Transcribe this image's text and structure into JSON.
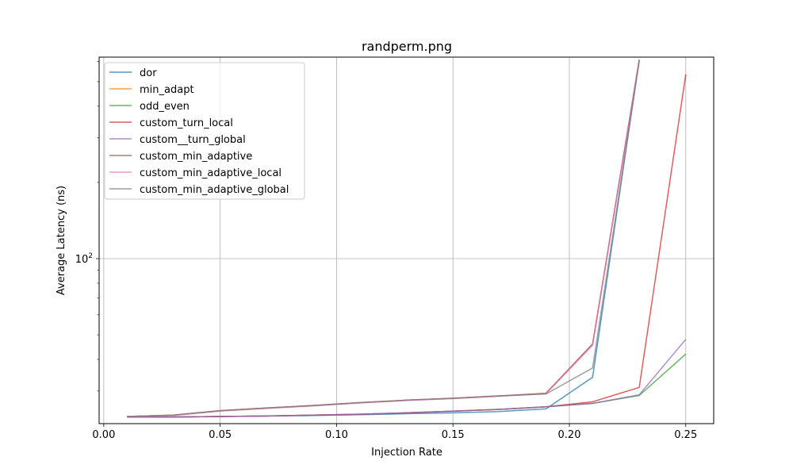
{
  "chart_data": {
    "type": "line",
    "title": "randperm.png",
    "xlabel": "Injection Rate",
    "ylabel": "Average Latency (ns)",
    "y_scale": "log",
    "xlim": [
      -0.002,
      0.262
    ],
    "ylim": [
      22.3,
      625
    ],
    "x_ticks": [
      0.0,
      0.05,
      0.1,
      0.15,
      0.2,
      0.25
    ],
    "x_tick_labels": [
      "0.00",
      "0.05",
      "0.10",
      "0.15",
      "0.20",
      "0.25"
    ],
    "y_major_tick": 100,
    "y_major_tick_label": "10",
    "y_major_tick_exponent": "2",
    "grid": true,
    "legend_position": "upper-left",
    "series": [
      {
        "name": "dor",
        "color": "#1f77b4",
        "x": [
          0.01,
          0.03,
          0.05,
          0.07,
          0.09,
          0.11,
          0.13,
          0.15,
          0.17,
          0.19,
          0.21,
          0.23
        ],
        "y": [
          23.7,
          23.7,
          23.8,
          23.9,
          24.0,
          24.2,
          24.4,
          24.6,
          24.9,
          25.5,
          34.0,
          610
        ]
      },
      {
        "name": "min_adapt",
        "color": "#ff7f0e",
        "x": [
          0.01,
          0.03,
          0.05,
          0.07,
          0.09,
          0.11,
          0.13,
          0.15,
          0.17,
          0.19,
          0.21,
          0.23
        ],
        "y": [
          23.8,
          24.1,
          25.1,
          25.7,
          26.3,
          27.0,
          27.6,
          28.1,
          28.7,
          29.4,
          46.0,
          610
        ]
      },
      {
        "name": "odd_even",
        "color": "#2ca02c",
        "x": [
          0.01,
          0.03,
          0.05,
          0.07,
          0.09,
          0.11,
          0.13,
          0.15,
          0.17,
          0.19,
          0.21,
          0.23,
          0.25
        ],
        "y": [
          23.7,
          23.7,
          23.8,
          23.9,
          24.1,
          24.3,
          24.6,
          25.0,
          25.4,
          26.0,
          26.8,
          28.8,
          42.0
        ]
      },
      {
        "name": "custom_turn_local",
        "color": "#d62728",
        "x": [
          0.01,
          0.03,
          0.05,
          0.07,
          0.09,
          0.11,
          0.13,
          0.15,
          0.17,
          0.19,
          0.21,
          0.23,
          0.25
        ],
        "y": [
          23.7,
          23.7,
          23.8,
          23.9,
          24.1,
          24.3,
          24.6,
          25.0,
          25.4,
          26.0,
          27.2,
          31.0,
          535
        ]
      },
      {
        "name": "custom__turn_global",
        "color": "#9467bd",
        "x": [
          0.01,
          0.03,
          0.05,
          0.07,
          0.09,
          0.11,
          0.13,
          0.15,
          0.17,
          0.19,
          0.21,
          0.23,
          0.25
        ],
        "y": [
          23.7,
          23.7,
          23.8,
          23.9,
          24.1,
          24.3,
          24.6,
          25.0,
          25.4,
          26.0,
          26.8,
          29.0,
          48.0
        ]
      },
      {
        "name": "custom_min_adaptive",
        "color": "#8c564b",
        "x": [
          0.01,
          0.03,
          0.05,
          0.07,
          0.09,
          0.11,
          0.13,
          0.15,
          0.17,
          0.19,
          0.21,
          0.23
        ],
        "y": [
          23.8,
          24.1,
          25.1,
          25.7,
          26.3,
          27.0,
          27.6,
          28.1,
          28.7,
          29.4,
          46.0,
          610
        ]
      },
      {
        "name": "custom_min_adaptive_local",
        "color": "#e377c2",
        "x": [
          0.01,
          0.03,
          0.05,
          0.07,
          0.09,
          0.11,
          0.13,
          0.15,
          0.17,
          0.19,
          0.21,
          0.23
        ],
        "y": [
          23.8,
          24.0,
          25.0,
          25.6,
          26.2,
          26.9,
          27.5,
          28.0,
          28.6,
          29.3,
          45.5,
          605
        ]
      },
      {
        "name": "custom_min_adaptive_global",
        "color": "#7f7f7f",
        "x": [
          0.01,
          0.03,
          0.05,
          0.07,
          0.09,
          0.11,
          0.13,
          0.15,
          0.17,
          0.19,
          0.21,
          0.23
        ],
        "y": [
          23.8,
          24.1,
          25.1,
          25.7,
          26.3,
          27.0,
          27.6,
          28.1,
          28.7,
          29.2,
          37.0,
          600
        ]
      }
    ]
  }
}
